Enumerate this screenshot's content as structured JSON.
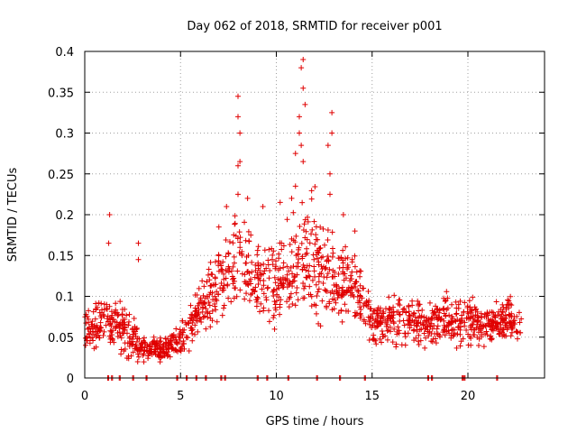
{
  "chart_data": {
    "type": "scatter",
    "title": "Day 062 of 2018, SRMTID for receiver p001",
    "xlabel": "GPS time / hours",
    "ylabel": "SRMTID / TECUs",
    "xlim": [
      0,
      24
    ],
    "ylim": [
      0,
      0.4
    ],
    "grid": true,
    "marker": "+",
    "color": "#e00000",
    "xticks": [
      0,
      5,
      10,
      15,
      20
    ],
    "yticks": [
      0,
      0.05,
      0.1,
      0.15,
      0.2,
      0.25,
      0.3,
      0.35,
      0.4
    ],
    "x_tick_labels": [
      "0",
      "5",
      "10",
      "15",
      "20"
    ],
    "y_tick_labels": [
      "0",
      "0.05",
      "0.1",
      "0.15",
      "0.2",
      "0.25",
      "0.3",
      "0.35",
      "0.4"
    ],
    "envelope": [
      {
        "x": 0.0,
        "mean": 0.06,
        "spread": 0.025
      },
      {
        "x": 1.0,
        "mean": 0.07,
        "spread": 0.035
      },
      {
        "x": 2.0,
        "mean": 0.06,
        "spread": 0.03
      },
      {
        "x": 2.5,
        "mean": 0.05,
        "spread": 0.03
      },
      {
        "x": 3.0,
        "mean": 0.035,
        "spread": 0.015
      },
      {
        "x": 4.0,
        "mean": 0.035,
        "spread": 0.015
      },
      {
        "x": 5.0,
        "mean": 0.045,
        "spread": 0.02
      },
      {
        "x": 6.0,
        "mean": 0.08,
        "spread": 0.03
      },
      {
        "x": 7.0,
        "mean": 0.12,
        "spread": 0.05
      },
      {
        "x": 8.0,
        "mean": 0.14,
        "spread": 0.06
      },
      {
        "x": 9.0,
        "mean": 0.12,
        "spread": 0.05
      },
      {
        "x": 10.0,
        "mean": 0.11,
        "spread": 0.05
      },
      {
        "x": 11.0,
        "mean": 0.14,
        "spread": 0.06
      },
      {
        "x": 12.0,
        "mean": 0.15,
        "spread": 0.07
      },
      {
        "x": 13.0,
        "mean": 0.12,
        "spread": 0.05
      },
      {
        "x": 14.0,
        "mean": 0.11,
        "spread": 0.04
      },
      {
        "x": 15.0,
        "mean": 0.07,
        "spread": 0.03
      },
      {
        "x": 16.0,
        "mean": 0.07,
        "spread": 0.03
      },
      {
        "x": 17.0,
        "mean": 0.07,
        "spread": 0.03
      },
      {
        "x": 18.0,
        "mean": 0.065,
        "spread": 0.025
      },
      {
        "x": 19.0,
        "mean": 0.075,
        "spread": 0.03
      },
      {
        "x": 20.0,
        "mean": 0.07,
        "spread": 0.03
      },
      {
        "x": 21.0,
        "mean": 0.065,
        "spread": 0.025
      },
      {
        "x": 22.0,
        "mean": 0.07,
        "spread": 0.03
      },
      {
        "x": 22.8,
        "mean": 0.065,
        "spread": 0.02
      }
    ],
    "peaks": [
      {
        "x": 1.3,
        "y": 0.2
      },
      {
        "x": 1.25,
        "y": 0.165
      },
      {
        "x": 2.8,
        "y": 0.165
      },
      {
        "x": 2.8,
        "y": 0.145
      },
      {
        "x": 7.0,
        "y": 0.185
      },
      {
        "x": 7.4,
        "y": 0.21
      },
      {
        "x": 8.0,
        "y": 0.345
      },
      {
        "x": 8.0,
        "y": 0.32
      },
      {
        "x": 8.1,
        "y": 0.3
      },
      {
        "x": 8.1,
        "y": 0.265
      },
      {
        "x": 8.0,
        "y": 0.26
      },
      {
        "x": 8.0,
        "y": 0.225
      },
      {
        "x": 8.5,
        "y": 0.22
      },
      {
        "x": 9.3,
        "y": 0.21
      },
      {
        "x": 10.2,
        "y": 0.215
      },
      {
        "x": 11.3,
        "y": 0.38
      },
      {
        "x": 11.4,
        "y": 0.39
      },
      {
        "x": 11.4,
        "y": 0.355
      },
      {
        "x": 11.5,
        "y": 0.335
      },
      {
        "x": 11.2,
        "y": 0.32
      },
      {
        "x": 11.2,
        "y": 0.3
      },
      {
        "x": 11.3,
        "y": 0.285
      },
      {
        "x": 11.4,
        "y": 0.265
      },
      {
        "x": 11.0,
        "y": 0.275
      },
      {
        "x": 11.0,
        "y": 0.235
      },
      {
        "x": 10.8,
        "y": 0.22
      },
      {
        "x": 12.9,
        "y": 0.325
      },
      {
        "x": 12.9,
        "y": 0.3
      },
      {
        "x": 12.7,
        "y": 0.285
      },
      {
        "x": 12.8,
        "y": 0.25
      },
      {
        "x": 12.8,
        "y": 0.225
      },
      {
        "x": 13.5,
        "y": 0.2
      },
      {
        "x": 14.1,
        "y": 0.18
      }
    ],
    "zero_points_x": [
      1.2,
      1.4,
      1.8,
      2.5,
      3.2,
      4.8,
      5.3,
      5.8,
      6.3,
      7.1,
      7.3,
      9.0,
      9.5,
      10.6,
      12.1,
      13.3,
      14.6,
      17.9,
      18.1,
      19.7,
      19.8,
      21.5
    ]
  }
}
